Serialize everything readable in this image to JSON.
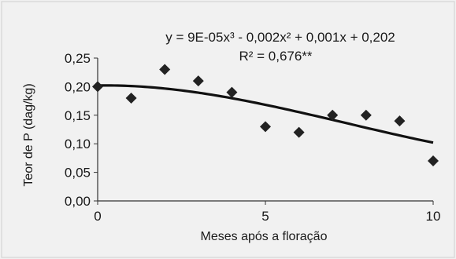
{
  "chart_data": {
    "type": "scatter",
    "title": "",
    "xlabel": "Meses após a floração",
    "ylabel": "Teor de P (dag/kg)",
    "xlim": [
      0,
      10
    ],
    "ylim": [
      0,
      0.25
    ],
    "x_ticks": [
      0,
      5,
      10
    ],
    "x_tick_labels": [
      "0",
      "5",
      "10"
    ],
    "y_ticks": [
      0.0,
      0.05,
      0.1,
      0.15,
      0.2,
      0.25
    ],
    "y_tick_labels": [
      "0,00",
      "0,05",
      "0,10",
      "0,15",
      "0,20",
      "0,25"
    ],
    "grid": false,
    "legend": false,
    "equation": "y = 9E-05x³ - 0,002x² + 0,001x + 0,202",
    "r_squared": "R² = 0,676**",
    "series": [
      {
        "type": "scatter",
        "marker": "diamond",
        "color": "#222222",
        "x": [
          0,
          1,
          2,
          3,
          4,
          5,
          6,
          7,
          8,
          9,
          10
        ],
        "y": [
          0.2,
          0.18,
          0.23,
          0.21,
          0.19,
          0.13,
          0.12,
          0.15,
          0.15,
          0.14,
          0.07
        ]
      },
      {
        "type": "line",
        "color": "#111111",
        "fit": "polynomial",
        "coefficients": {
          "a3": 9e-05,
          "a2": -0.002,
          "a1": 0.001,
          "a0": 0.202
        }
      }
    ]
  }
}
